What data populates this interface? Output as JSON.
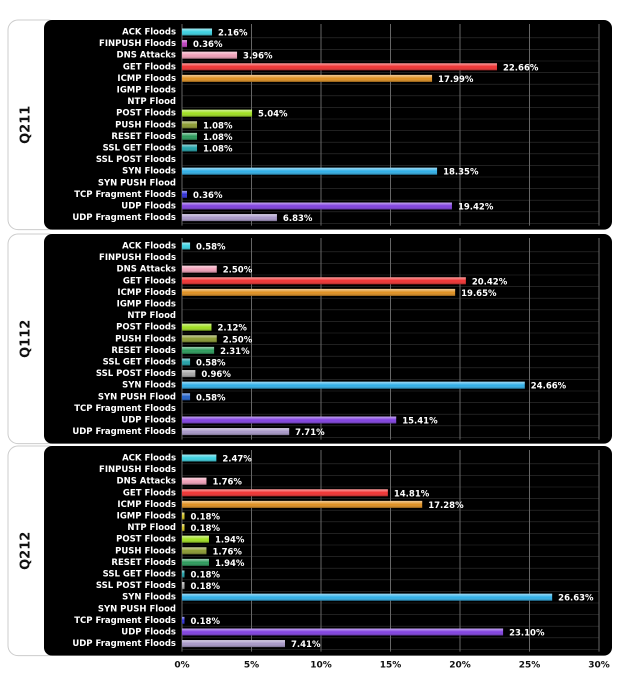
{
  "chart_data": {
    "type": "hbar",
    "categories": [
      "ACK Floods",
      "FINPUSH Floods",
      "DNS Attacks",
      "GET Floods",
      "ICMP Floods",
      "IGMP Floods",
      "NTP Flood",
      "POST Floods",
      "PUSH Floods",
      "RESET Floods",
      "SSL GET Floods",
      "SSL POST Floods",
      "SYN Floods",
      "SYN PUSH Flood",
      "TCP Fragment Floods",
      "UDP Floods",
      "UDP Fragment Floods"
    ],
    "colors": [
      "#3ad0e0",
      "#c040c0",
      "#f0a0b8",
      "#f03030",
      "#e09020",
      "#d0c020",
      "#d0c020",
      "#a0e020",
      "#8a9a30",
      "#2a9a5a",
      "#20a0a8",
      "#a8a8a8",
      "#30b0e8",
      "#2060c8",
      "#3030d8",
      "#8040e0",
      "#a898c8"
    ],
    "series": [
      {
        "name": "Q211",
        "values": [
          2.16,
          0.36,
          3.96,
          22.66,
          17.99,
          null,
          null,
          5.04,
          1.08,
          1.08,
          1.08,
          null,
          18.35,
          null,
          0.36,
          19.42,
          6.83
        ],
        "value_labels": [
          "2.16%",
          "0.36%",
          "3.96%",
          "22.66%",
          "17.99%",
          null,
          null,
          "5.04%",
          "1.08%",
          "1.08%",
          "1.08%",
          null,
          "18.35%",
          null,
          "0.36%",
          "19.42%",
          "6.83%"
        ]
      },
      {
        "name": "Q112",
        "values": [
          0.58,
          null,
          2.5,
          20.42,
          19.65,
          null,
          null,
          2.12,
          2.5,
          2.31,
          0.58,
          0.96,
          24.66,
          0.58,
          null,
          15.41,
          7.71
        ],
        "value_labels": [
          "0.58%",
          null,
          "2.50%",
          "20.42%",
          "19.65%",
          null,
          null,
          "2.12%",
          "2.50%",
          "2.31%",
          "0.58%",
          "0.96%",
          "24.66%",
          "0.58%",
          null,
          "15.41%",
          "7.71%"
        ]
      },
      {
        "name": "Q212",
        "values": [
          2.47,
          null,
          1.76,
          14.81,
          17.28,
          0.18,
          0.18,
          1.94,
          1.76,
          1.94,
          0.18,
          0.18,
          26.63,
          null,
          0.18,
          23.1,
          7.41
        ],
        "value_labels": [
          "2.47%",
          null,
          "1.76%",
          "14.81%",
          "17.28%",
          "0.18%",
          "0.18%",
          "1.94%",
          "1.76%",
          "1.94%",
          "0.18%",
          "0.18%",
          "26.63%",
          null,
          "0.18%",
          "23.10%",
          "7.41%"
        ]
      }
    ],
    "xlim": [
      0,
      30
    ],
    "xticks": [
      {
        "value": 0,
        "label": "0%"
      },
      {
        "value": 5,
        "label": "5%"
      },
      {
        "value": 10,
        "label": "10%"
      },
      {
        "value": 15,
        "label": "15%"
      },
      {
        "value": 20,
        "label": "20%"
      },
      {
        "value": 25,
        "label": "25%"
      },
      {
        "value": 30,
        "label": "30%"
      }
    ],
    "grid": true
  }
}
